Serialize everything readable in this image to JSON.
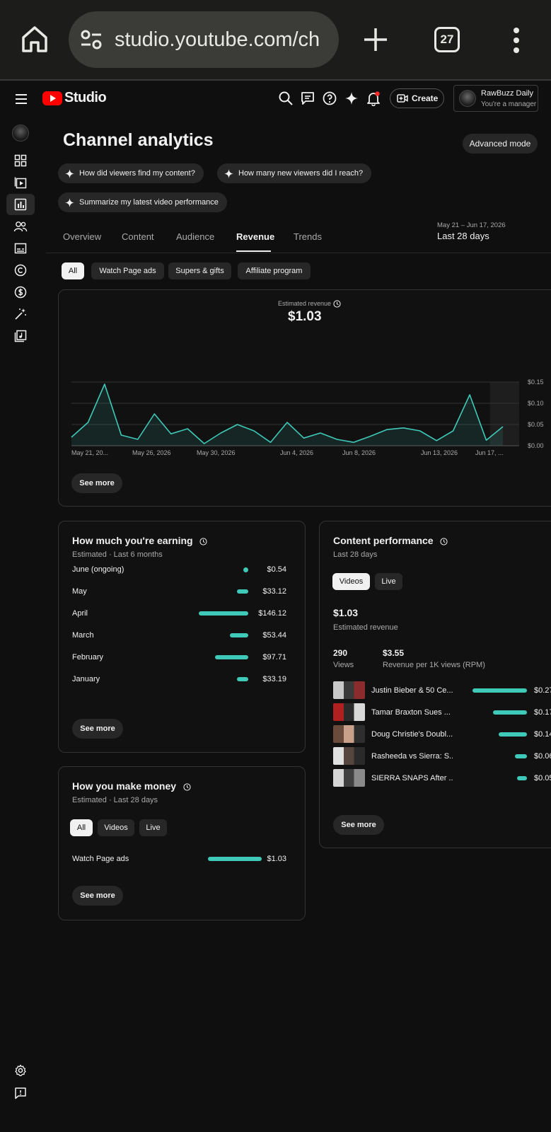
{
  "browser": {
    "url": "studio.youtube.com/ch",
    "tab_count": "27"
  },
  "header": {
    "logo_text": "Studio",
    "create_label": "Create",
    "account_name": "RawBuzz Daily",
    "account_role": "You're a manager"
  },
  "page": {
    "title": "Channel analytics",
    "advanced_label": "Advanced mode",
    "suggestions": [
      "How did viewers find my content?",
      "How many new viewers did I reach?",
      "Summarize my latest video performance"
    ],
    "tabs": [
      "Overview",
      "Content",
      "Audience",
      "Revenue",
      "Trends"
    ],
    "active_tab": "Revenue",
    "date_range": "May 21 – Jun 17, 2026",
    "date_label": "Last 28 days",
    "filter_chips": [
      "All",
      "Watch Page ads",
      "Supers & gifts",
      "Affiliate program"
    ]
  },
  "revenue_chart": {
    "title": "Estimated revenue",
    "total": "$1.03",
    "see_more": "See more"
  },
  "chart_data": {
    "type": "area",
    "title": "Estimated revenue",
    "x_tick_labels": [
      "May 21, 20...",
      "May 26, 2026",
      "May 30, 2026",
      "Jun 4, 2026",
      "Jun 8, 2026",
      "Jun 13, 2026",
      "Jun 17, ..."
    ],
    "y_tick_labels": [
      "$0.15",
      "$0.10",
      "$0.05",
      "$0.00"
    ],
    "ylim": [
      0,
      0.15
    ],
    "series": [
      {
        "values": [
          0.02,
          0.055,
          0.145,
          0.025,
          0.015,
          0.075,
          0.028,
          0.04,
          0.005,
          0.03,
          0.05,
          0.035,
          0.008,
          0.055,
          0.018,
          0.03,
          0.015,
          0.008,
          0.022,
          0.038,
          0.042,
          0.035,
          0.012,
          0.035,
          0.12,
          0.013,
          0.045
        ]
      }
    ],
    "grid": true
  },
  "earning_card": {
    "title": "How much you're earning",
    "subtitle": "Estimated · Last 6 months",
    "rows": [
      {
        "label": "June (ongoing)",
        "value": "$0.54",
        "amount": 0.54
      },
      {
        "label": "May",
        "value": "$33.12",
        "amount": 33.12
      },
      {
        "label": "April",
        "value": "$146.12",
        "amount": 146.12
      },
      {
        "label": "March",
        "value": "$53.44",
        "amount": 53.44
      },
      {
        "label": "February",
        "value": "$97.71",
        "amount": 97.71
      },
      {
        "label": "January",
        "value": "$33.19",
        "amount": 33.19
      }
    ],
    "see_more": "See more"
  },
  "money_card": {
    "title": "How you make money",
    "subtitle": "Estimated · Last 28 days",
    "chips": [
      "All",
      "Videos",
      "Live"
    ],
    "rows": [
      {
        "label": "Watch Page ads",
        "value": "$1.03",
        "amount": 1.03
      }
    ],
    "see_more": "See more"
  },
  "content_card": {
    "title": "Content performance",
    "subtitle": "Last 28 days",
    "chips": [
      "Videos",
      "Live"
    ],
    "revenue_value": "$1.03",
    "revenue_label": "Estimated revenue",
    "views_value": "290",
    "views_label": "Views",
    "rpm_value": "$3.55",
    "rpm_label": "Revenue per 1K views (RPM)",
    "videos": [
      {
        "title": "Justin Bieber & 50 Ce...",
        "value": "$0.27",
        "amount": 0.27
      },
      {
        "title": "Tamar Braxton Sues ...",
        "value": "$0.17",
        "amount": 0.17
      },
      {
        "title": "Doug Christie's Doubl...",
        "value": "$0.14",
        "amount": 0.14
      },
      {
        "title": "Rasheeda vs Sierra: S...",
        "value": "$0.06",
        "amount": 0.06
      },
      {
        "title": "SIERRA SNAPS After ...",
        "value": "$0.05",
        "amount": 0.05
      }
    ],
    "see_more": "See more"
  },
  "colors": {
    "accent": "#3ec9b8",
    "background": "#0f0f0f",
    "card": "#111111",
    "chip": "#272727"
  }
}
